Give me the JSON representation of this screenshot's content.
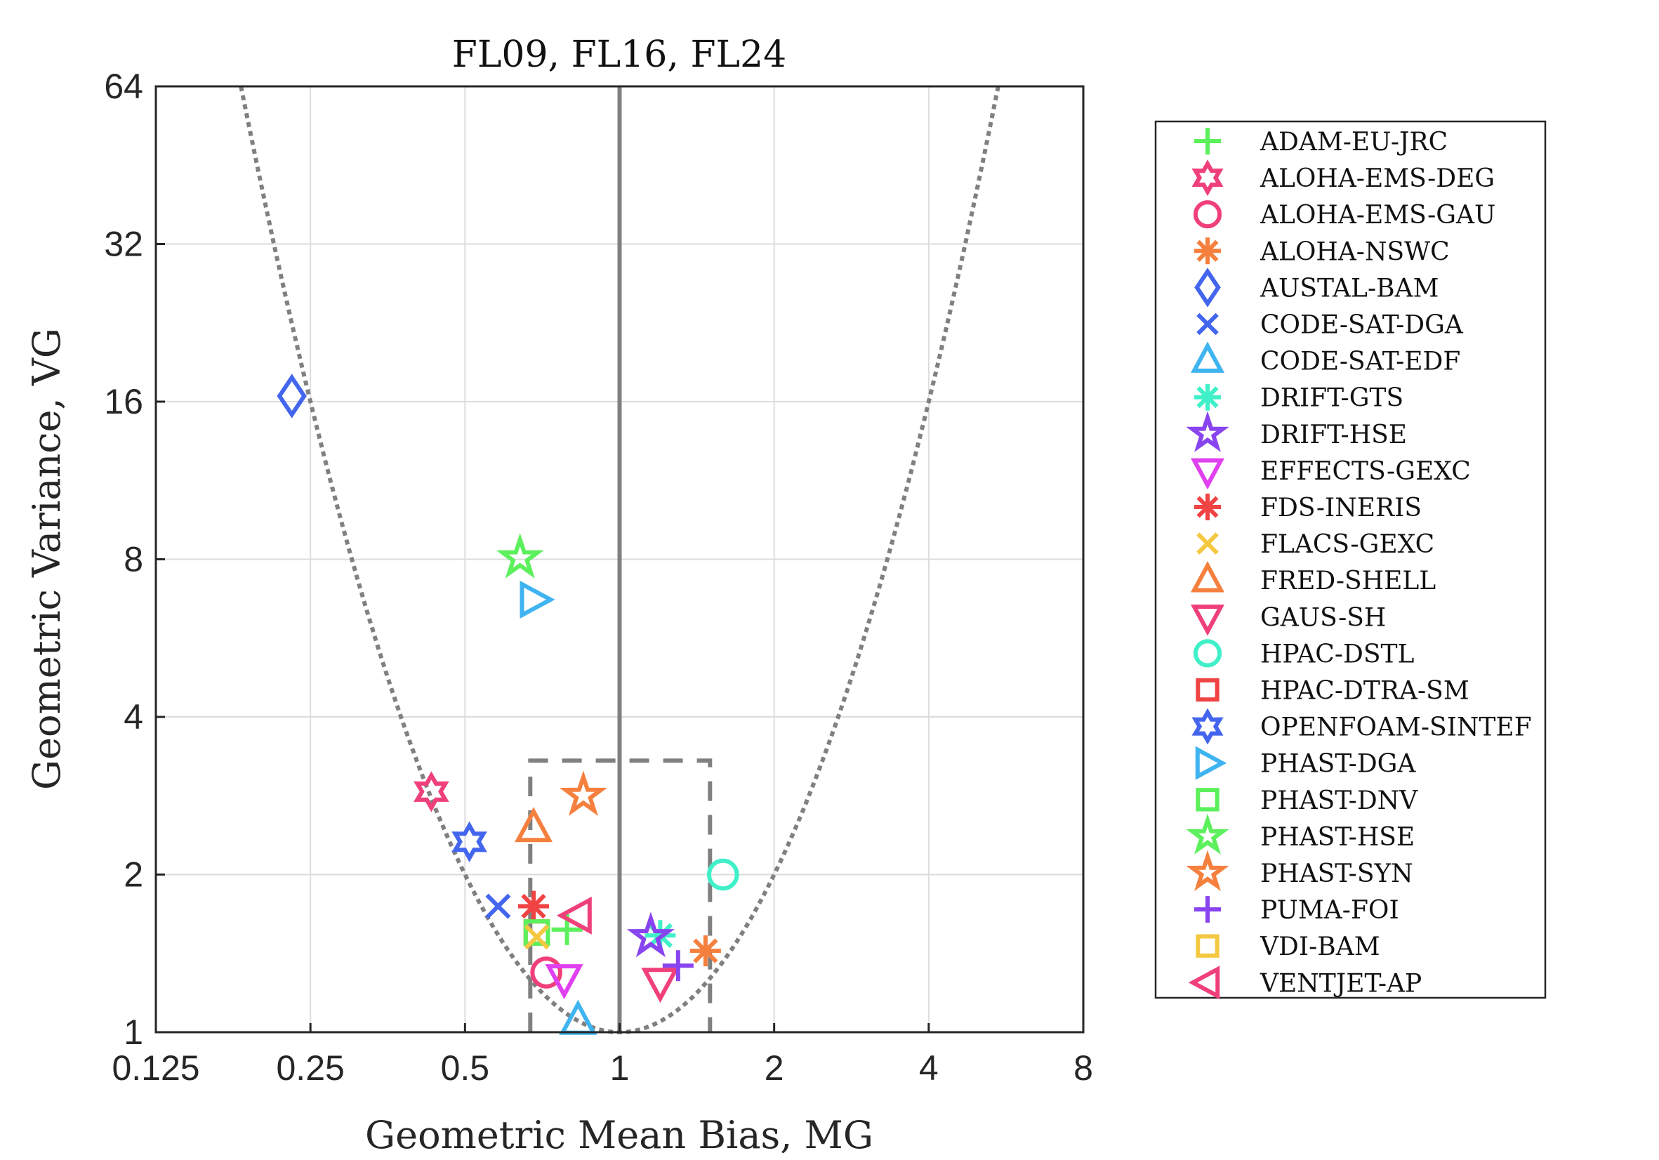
{
  "chart_data": {
    "type": "scatter",
    "title": "FL09, FL16, FL24",
    "xlabel": "Geometric Mean Bias, MG",
    "ylabel": "Geometric Variance, VG",
    "xscale": "log2",
    "yscale": "log2",
    "xlim": [
      0.125,
      8
    ],
    "ylim": [
      1,
      64
    ],
    "xticks": [
      0.125,
      0.25,
      0.5,
      1,
      2,
      4,
      8
    ],
    "xtick_labels": [
      "0.125",
      "0.25",
      "0.5",
      "1",
      "2",
      "4",
      "8"
    ],
    "yticks": [
      1,
      2,
      4,
      8,
      16,
      32,
      64
    ],
    "ytick_labels": [
      "1",
      "2",
      "4",
      "8",
      "16",
      "32",
      "64"
    ],
    "grid": true,
    "legend_position": "outside-right",
    "reference_lines": {
      "perfect_model_mg": 1,
      "min_vg_curve": "log2(VG) = (log2(MG))^2",
      "acceptance_box": {
        "mg_min": 0.67,
        "mg_max": 1.5,
        "vg_max": 3.3,
        "vg_min": 1
      }
    },
    "series": [
      {
        "name": "ADAM-EU-JRC",
        "marker": "plus",
        "color": "#5cf05c",
        "x": 0.79,
        "y": 1.57
      },
      {
        "name": "ALOHA-EMS-DEG",
        "marker": "hexagram",
        "color": "#f0407a",
        "x": 0.43,
        "y": 2.88
      },
      {
        "name": "ALOHA-EMS-GAU",
        "marker": "circle",
        "color": "#f0407a",
        "x": 0.72,
        "y": 1.3
      },
      {
        "name": "ALOHA-NSWC",
        "marker": "asterisk",
        "color": "#f5803e",
        "x": 1.47,
        "y": 1.43
      },
      {
        "name": "AUSTAL-BAM",
        "marker": "diamond",
        "color": "#4466ee",
        "x": 0.23,
        "y": 16.4
      },
      {
        "name": "CODE-SAT-DGA",
        "marker": "x",
        "color": "#4466ee",
        "x": 0.58,
        "y": 1.74
      },
      {
        "name": "CODE-SAT-EDF",
        "marker": "triangle-up",
        "color": "#3fb4f0",
        "x": 0.83,
        "y": 1.05
      },
      {
        "name": "DRIFT-GTS",
        "marker": "asterisk",
        "color": "#40f0c8",
        "x": 1.2,
        "y": 1.53
      },
      {
        "name": "DRIFT-HSE",
        "marker": "pentagram",
        "color": "#8844ee",
        "x": 1.15,
        "y": 1.52
      },
      {
        "name": "EFFECTS-GEXC",
        "marker": "triangle-down",
        "color": "#e040f0",
        "x": 0.78,
        "y": 1.27
      },
      {
        "name": "FDS-INERIS",
        "marker": "asterisk",
        "color": "#f04444",
        "x": 0.68,
        "y": 1.74
      },
      {
        "name": "FLACS-GEXC",
        "marker": "x",
        "color": "#f5c842",
        "x": 0.69,
        "y": 1.52
      },
      {
        "name": "FRED-SHELL",
        "marker": "triangle-up",
        "color": "#f5803e",
        "x": 0.68,
        "y": 2.45
      },
      {
        "name": "GAUS-SH",
        "marker": "triangle-down",
        "color": "#f0407a",
        "x": 1.2,
        "y": 1.25
      },
      {
        "name": "HPAC-DSTL",
        "marker": "circle",
        "color": "#40f0c8",
        "x": 1.59,
        "y": 2.0
      },
      {
        "name": "HPAC-DTRA-SM",
        "marker": "square",
        "color": "#f04444",
        "x": 0.69,
        "y": 1.55
      },
      {
        "name": "OPENFOAM-SINTEF",
        "marker": "hexagram",
        "color": "#4466ee",
        "x": 0.51,
        "y": 2.31
      },
      {
        "name": "PHAST-DGA",
        "marker": "triangle-right",
        "color": "#3fb4f0",
        "x": 0.68,
        "y": 6.7
      },
      {
        "name": "PHAST-DNV",
        "marker": "square",
        "color": "#5cf05c",
        "x": 0.69,
        "y": 1.55
      },
      {
        "name": "PHAST-HSE",
        "marker": "pentagram",
        "color": "#5cf05c",
        "x": 0.64,
        "y": 8.04
      },
      {
        "name": "PHAST-SYN",
        "marker": "pentagram",
        "color": "#f5803e",
        "x": 0.85,
        "y": 2.83
      },
      {
        "name": "PUMA-FOI",
        "marker": "plus",
        "color": "#8844ee",
        "x": 1.3,
        "y": 1.34
      },
      {
        "name": "VDI-BAM",
        "marker": "square",
        "color": "#f5c842",
        "x": 0.69,
        "y": 1.55
      },
      {
        "name": "VENTJET-AP",
        "marker": "triangle-left",
        "color": "#f0407a",
        "x": 0.83,
        "y": 1.67
      }
    ],
    "draw_order": [
      15,
      22,
      0,
      1,
      2,
      3,
      4,
      5,
      6,
      7,
      8,
      9,
      10,
      18,
      11,
      12,
      13,
      14,
      16,
      17,
      19,
      20,
      21,
      23
    ]
  },
  "colors": {
    "reference_line": "#808080",
    "axis": "#262626"
  }
}
